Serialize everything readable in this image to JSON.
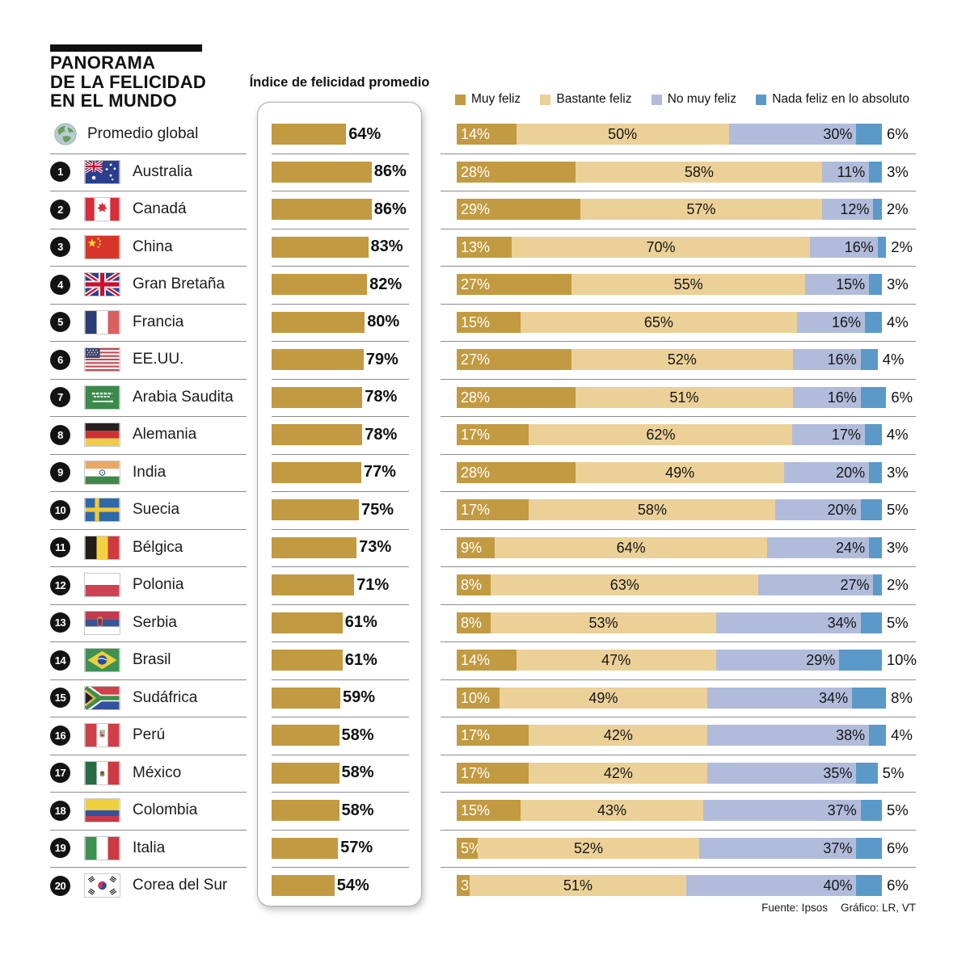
{
  "header": {
    "title_lines": [
      "PANORAMA",
      "DE LA FELICIDAD",
      "EN EL MUNDO"
    ],
    "index_heading": "Índice de felicidad promedio"
  },
  "legend": {
    "items": [
      {
        "label": "Muy feliz",
        "color": "#C29A41"
      },
      {
        "label": "Bastante feliz",
        "color": "#EBD098"
      },
      {
        "label": "No muy feliz",
        "color": "#B1BCDB"
      },
      {
        "label": "Nada feliz en lo absoluto",
        "color": "#5B99C8"
      }
    ]
  },
  "footer": {
    "source": "Fuente: Ipsos",
    "credit": "Gráfico: LR, VT"
  },
  "chart_data": {
    "type": "bar",
    "title": "Panorama de la felicidad en el mundo",
    "index_label": "Índice de felicidad promedio",
    "stack_series": [
      "Muy feliz",
      "Bastante feliz",
      "No muy feliz",
      "Nada feliz en lo absoluto"
    ],
    "unit": "%",
    "colors": [
      "#C29A41",
      "#EBD098",
      "#B1BCDB",
      "#5B99C8"
    ],
    "rows": [
      {
        "rank": "",
        "name": "Promedio global",
        "flag": "globe",
        "index": 64,
        "values": [
          14,
          50,
          30,
          6
        ]
      },
      {
        "rank": "1",
        "name": "Australia",
        "flag": "australia",
        "index": 86,
        "values": [
          28,
          58,
          11,
          3
        ]
      },
      {
        "rank": "2",
        "name": "Canadá",
        "flag": "canada",
        "index": 86,
        "values": [
          29,
          57,
          12,
          2
        ]
      },
      {
        "rank": "3",
        "name": "China",
        "flag": "china",
        "index": 83,
        "values": [
          13,
          70,
          16,
          2
        ]
      },
      {
        "rank": "4",
        "name": "Gran Bretaña",
        "flag": "uk",
        "index": 82,
        "values": [
          27,
          55,
          15,
          3
        ]
      },
      {
        "rank": "5",
        "name": "Francia",
        "flag": "france",
        "index": 80,
        "values": [
          15,
          65,
          16,
          4
        ]
      },
      {
        "rank": "6",
        "name": "EE.UU.",
        "flag": "usa",
        "index": 79,
        "values": [
          27,
          52,
          16,
          4
        ]
      },
      {
        "rank": "7",
        "name": "Arabia Saudita",
        "flag": "saudi",
        "index": 78,
        "values": [
          28,
          51,
          16,
          6
        ]
      },
      {
        "rank": "8",
        "name": "Alemania",
        "flag": "germany",
        "index": 78,
        "values": [
          17,
          62,
          17,
          4
        ]
      },
      {
        "rank": "9",
        "name": "India",
        "flag": "india",
        "index": 77,
        "values": [
          28,
          49,
          20,
          3
        ]
      },
      {
        "rank": "10",
        "name": "Suecia",
        "flag": "sweden",
        "index": 75,
        "values": [
          17,
          58,
          20,
          5
        ]
      },
      {
        "rank": "11",
        "name": "Bélgica",
        "flag": "belgium",
        "index": 73,
        "values": [
          9,
          64,
          24,
          3
        ]
      },
      {
        "rank": "12",
        "name": "Polonia",
        "flag": "poland",
        "index": 71,
        "values": [
          8,
          63,
          27,
          2
        ]
      },
      {
        "rank": "13",
        "name": "Serbia",
        "flag": "serbia",
        "index": 61,
        "values": [
          8,
          53,
          34,
          5
        ]
      },
      {
        "rank": "14",
        "name": "Brasil",
        "flag": "brazil",
        "index": 61,
        "values": [
          14,
          47,
          29,
          10
        ]
      },
      {
        "rank": "15",
        "name": "Sudáfrica",
        "flag": "southafrica",
        "index": 59,
        "values": [
          10,
          49,
          34,
          8
        ]
      },
      {
        "rank": "16",
        "name": "Perú",
        "flag": "peru",
        "index": 58,
        "values": [
          17,
          42,
          38,
          4
        ]
      },
      {
        "rank": "17",
        "name": "México",
        "flag": "mexico",
        "index": 58,
        "values": [
          17,
          42,
          35,
          5
        ]
      },
      {
        "rank": "18",
        "name": "Colombia",
        "flag": "colombia",
        "index": 58,
        "values": [
          15,
          43,
          37,
          5
        ]
      },
      {
        "rank": "19",
        "name": "Italia",
        "flag": "italy",
        "index": 57,
        "values": [
          5,
          52,
          37,
          6
        ]
      },
      {
        "rank": "20",
        "name": "Corea del Sur",
        "flag": "southkorea",
        "index": 54,
        "values": [
          3,
          51,
          40,
          6
        ]
      }
    ]
  }
}
